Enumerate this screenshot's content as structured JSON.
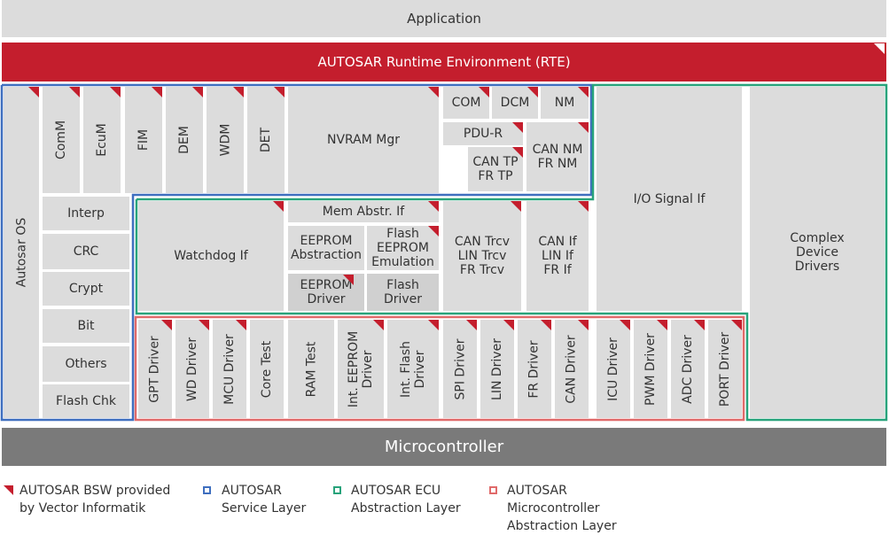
{
  "colors": {
    "cell": "#dcdcdc",
    "rte": "#c41e2d",
    "micro": "#7a7a7a",
    "service": "#3f6fbf",
    "ecu": "#28a37b",
    "mcal": "#e06a6a",
    "vector": "#c41e2d"
  },
  "application": "Application",
  "rte": "AUTOSAR Runtime Environment (RTE)",
  "microcontroller": "Microcontroller",
  "service": {
    "os": "Autosar OS",
    "comm": "ComM",
    "ecum": "EcuM",
    "fim": "FIM",
    "dem": "DEM",
    "wdm": "WDM",
    "det": "DET",
    "nvram": "NVRAM Mgr",
    "com": "COM",
    "dcm": "DCM",
    "nm": "NM",
    "pdur": "PDU-R",
    "cantp": "CAN TP\nFR TP",
    "cannm": "CAN NM\nFR NM",
    "interp": "Interp",
    "crc": "CRC",
    "crypt": "Crypt",
    "bit": "Bit",
    "others": "Others",
    "flashchk": "Flash Chk"
  },
  "ecu": {
    "watchdog": "Watchdog If",
    "memabstr": "Mem Abstr. If",
    "eeprom_abs": "EEPROM\nAbstraction",
    "flash_emu": "Flash\nEEPROM\nEmulation",
    "eeprom_drv": "EEPROM\nDriver",
    "flash_drv": "Flash\nDriver",
    "trcv": "CAN Trcv\nLIN Trcv\nFR Trcv",
    "commif": "CAN If\nLIN If\nFR If",
    "io": "I/O Signal If"
  },
  "complex": "Complex\nDevice\nDrivers",
  "mcal": {
    "gpt": "GPT Driver",
    "wd": "WD Driver",
    "mcu": "MCU Driver",
    "core": "Core Test",
    "ram": "RAM Test",
    "inteeprom": "Int. EEPROM\nDriver",
    "intflash": "Int. Flash\nDriver",
    "spi": "SPI Driver",
    "lin": "LIN Driver",
    "fr": "FR Driver",
    "can": "CAN Driver",
    "icu": "ICU Driver",
    "pwm": "PWM Driver",
    "adc": "ADC Driver",
    "port": "PORT Driver"
  },
  "legend": {
    "vector": "AUTOSAR BSW provided\nby Vector Informatik",
    "service": "AUTOSAR\nService Layer",
    "ecu": "AUTOSAR ECU\nAbstraction Layer",
    "mcal": "AUTOSAR\nMicrocontroller\nAbstraction Layer"
  }
}
